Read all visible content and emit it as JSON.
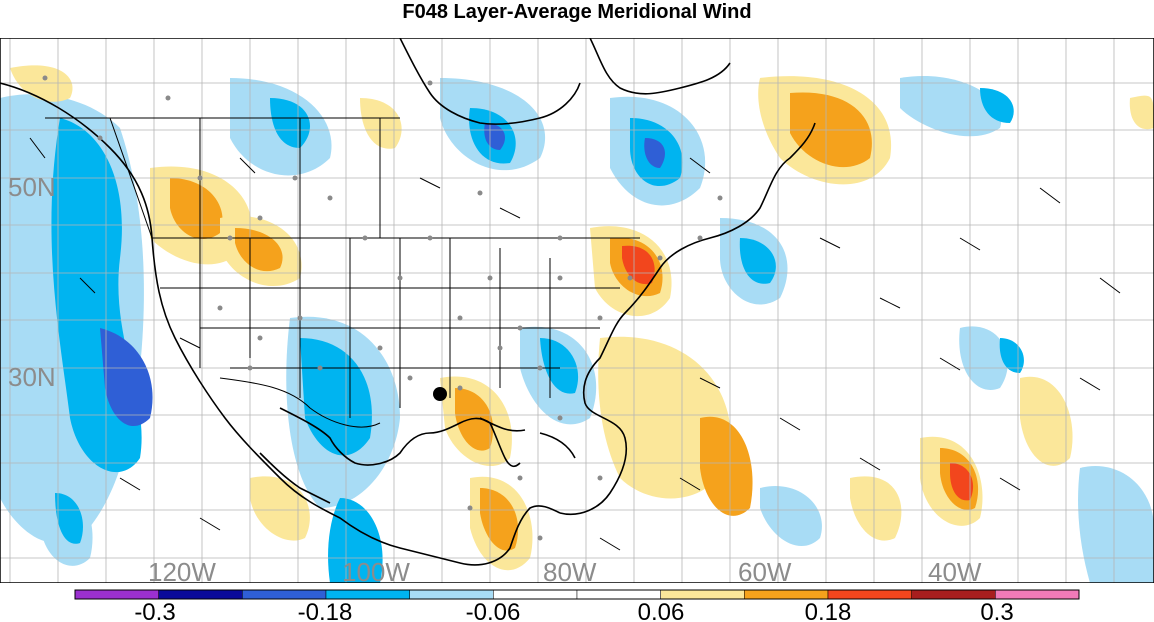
{
  "title": "F048 Layer-Average Meridional Wind",
  "lat_labels": [
    "50N",
    "30N"
  ],
  "lon_labels": [
    "120W",
    "100W",
    "80W",
    "60W",
    "40W"
  ],
  "colorbar": {
    "colors": [
      "#9b30d0",
      "#0a0a9a",
      "#2f5fd6",
      "#00b4f0",
      "#a8dcf5",
      "#ffffff",
      "#ffffff",
      "#fbe79a",
      "#f5a21c",
      "#f2461d",
      "#a81e1e",
      "#f07ab8"
    ],
    "labels": [
      "-0.3",
      "-0.18",
      "-0.06",
      "0.06",
      "0.18",
      "0.3"
    ]
  },
  "colors": {
    "ocean_bg": "#ffffff",
    "light_blue": "#a8dcf5",
    "blue": "#00b4f0",
    "dark_blue": "#2f5fd6",
    "yellow": "#fbe79a",
    "orange": "#f5a21c",
    "red": "#f2461d",
    "grid": "#b5b5b5",
    "station": "#8a8a8a"
  }
}
